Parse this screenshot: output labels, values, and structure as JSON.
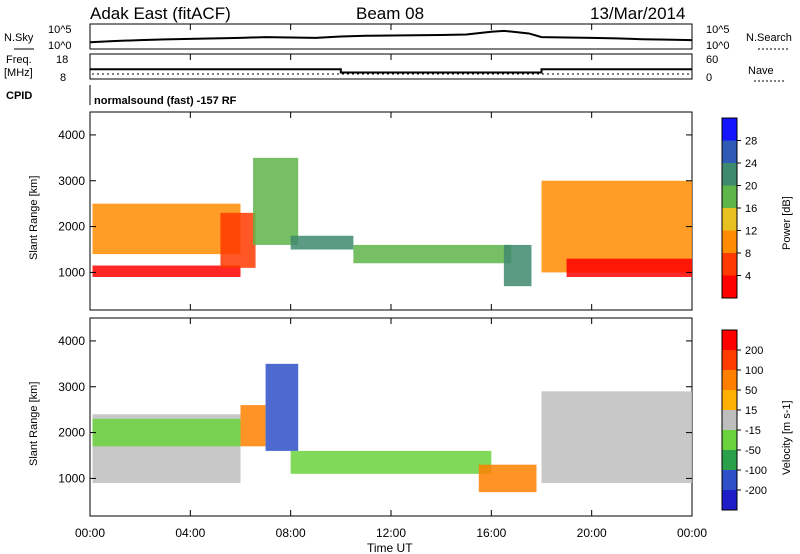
{
  "header": {
    "station": "Adak East (fitACF)",
    "beam": "Beam 08",
    "date": "13/Mar/2014"
  },
  "strip_labels": {
    "nsky": "N.Sky",
    "nsky_ticks": [
      "10^5",
      "10^0"
    ],
    "nsearch": "N.Search",
    "nsearch_ticks": [
      "10^5",
      "10^0"
    ],
    "freq": "Freq.",
    "freq_unit": "[MHz]",
    "freq_ticks": [
      "18",
      "8"
    ],
    "nave": "Nave",
    "nave_ticks": [
      "60",
      "0"
    ],
    "cpid": "CPID",
    "cpid_text": "normalsound (fast) -157 RF"
  },
  "chart_data": [
    {
      "type": "line",
      "name": "noise-sky",
      "title": "",
      "ylabel": "N.Sky",
      "yscale": "log",
      "ylim": [
        1,
        100000
      ],
      "x": [
        "00:00",
        "01:00",
        "02:00",
        "03:00",
        "04:00",
        "05:00",
        "06:00",
        "07:00",
        "08:00",
        "09:00",
        "10:00",
        "11:00",
        "12:00",
        "13:00",
        "14:00",
        "15:00",
        "16:00",
        "16:30",
        "17:00",
        "17:30",
        "18:00",
        "19:00",
        "20:00",
        "21:00",
        "22:00",
        "23:00",
        "24:00"
      ],
      "series": [
        {
          "values": [
            20,
            40,
            60,
            90,
            120,
            150,
            200,
            300,
            250,
            200,
            400,
            600,
            700,
            800,
            900,
            1200,
            5000,
            8000,
            4000,
            2000,
            300,
            250,
            200,
            150,
            100,
            80,
            60
          ]
        }
      ]
    },
    {
      "type": "line",
      "name": "frequency",
      "ylabel": "Freq. [MHz]",
      "ylim": [
        8,
        18
      ],
      "x": [
        "00:00",
        "10:00",
        "10:00",
        "18:00",
        "18:00",
        "24:00"
      ],
      "series": [
        {
          "values": [
            12,
            12,
            10.5,
            10.5,
            12,
            12
          ]
        }
      ],
      "right_axis": {
        "label": "Nave",
        "ylim": [
          0,
          60
        ]
      }
    },
    {
      "type": "heatmap",
      "name": "power",
      "xlabel": "Time UT",
      "ylabel": "Slant Range [km]",
      "xticks": [
        "00:00",
        "04:00",
        "08:00",
        "12:00",
        "16:00",
        "20:00",
        "00:00"
      ],
      "yticks": [
        "1000",
        "2000",
        "3000",
        "4000"
      ],
      "ylim": [
        180,
        4500
      ],
      "colorbar": {
        "label": "Power [dB]",
        "ticks": [
          "4",
          "8",
          "12",
          "16",
          "20",
          "24",
          "28"
        ],
        "colors": [
          "#1414ff",
          "#2e5ab4",
          "#3e8a6e",
          "#5fb44a",
          "#e8c020",
          "#ff8c00",
          "#ff3a00",
          "#ff0000"
        ]
      },
      "regions": [
        {
          "t": [
            0.1,
            6.0
          ],
          "r": [
            900,
            1150
          ],
          "level": 28
        },
        {
          "t": [
            0.1,
            6.0
          ],
          "r": [
            1400,
            2500
          ],
          "level": 20
        },
        {
          "t": [
            5.2,
            6.6
          ],
          "r": [
            1100,
            2300
          ],
          "level": 26
        },
        {
          "t": [
            6.5,
            8.3
          ],
          "r": [
            1600,
            3500
          ],
          "level": 12
        },
        {
          "t": [
            8.0,
            10.5
          ],
          "r": [
            1500,
            1800
          ],
          "level": 10
        },
        {
          "t": [
            10.5,
            16.8
          ],
          "r": [
            1200,
            1600
          ],
          "level": 12
        },
        {
          "t": [
            16.5,
            17.6
          ],
          "r": [
            700,
            1600
          ],
          "level": 8
        },
        {
          "t": [
            18.0,
            24.0
          ],
          "r": [
            1000,
            3000
          ],
          "level": 20
        },
        {
          "t": [
            19.0,
            24.0
          ],
          "r": [
            900,
            1300
          ],
          "level": 28
        }
      ]
    },
    {
      "type": "heatmap",
      "name": "velocity",
      "xlabel": "Time UT",
      "ylabel": "Slant Range [km]",
      "xticks": [
        "00:00",
        "04:00",
        "08:00",
        "12:00",
        "16:00",
        "20:00",
        "00:00"
      ],
      "yticks": [
        "1000",
        "2000",
        "3000",
        "4000"
      ],
      "ylim": [
        180,
        4500
      ],
      "colorbar": {
        "label": "Velocity [m s^-1]",
        "ticks": [
          "200",
          "100",
          "50",
          "15",
          "-15",
          "-50",
          "-100",
          "-200"
        ],
        "colors": [
          "#1e1ec8",
          "#2d50c8",
          "#2aa04a",
          "#6ad23c",
          "#bebebe",
          "#ffb000",
          "#ff8000",
          "#ff3c00",
          "#ff0000"
        ]
      },
      "regions": [
        {
          "t": [
            0.1,
            6.0
          ],
          "r": [
            900,
            2400
          ],
          "level": 0
        },
        {
          "t": [
            0.1,
            6.0
          ],
          "r": [
            1700,
            2300
          ],
          "level": 30
        },
        {
          "t": [
            6.0,
            7.0
          ],
          "r": [
            1700,
            2600
          ],
          "level": -60
        },
        {
          "t": [
            7.0,
            8.3
          ],
          "r": [
            1600,
            3500
          ],
          "level": 150
        },
        {
          "t": [
            8.0,
            16.0
          ],
          "r": [
            1100,
            1600
          ],
          "level": 40
        },
        {
          "t": [
            15.5,
            17.8
          ],
          "r": [
            700,
            1300
          ],
          "level": -60
        },
        {
          "t": [
            18.0,
            24.0
          ],
          "r": [
            900,
            2900
          ],
          "level": 0
        }
      ]
    }
  ],
  "footer": {
    "xlabel": "Time UT",
    "xticks": [
      "00:00",
      "04:00",
      "08:00",
      "12:00",
      "16:00",
      "20:00",
      "00:00"
    ]
  },
  "colorbars": {
    "power": {
      "label": "Power [dB]",
      "ticks": [
        "28",
        "24",
        "20",
        "16",
        "12",
        "8",
        "4"
      ]
    },
    "velocity": {
      "label": "Velocity [m s-1]",
      "ticks": [
        "200",
        "100",
        "50",
        "15",
        "-15",
        "-50",
        "-100",
        "-200"
      ]
    }
  }
}
